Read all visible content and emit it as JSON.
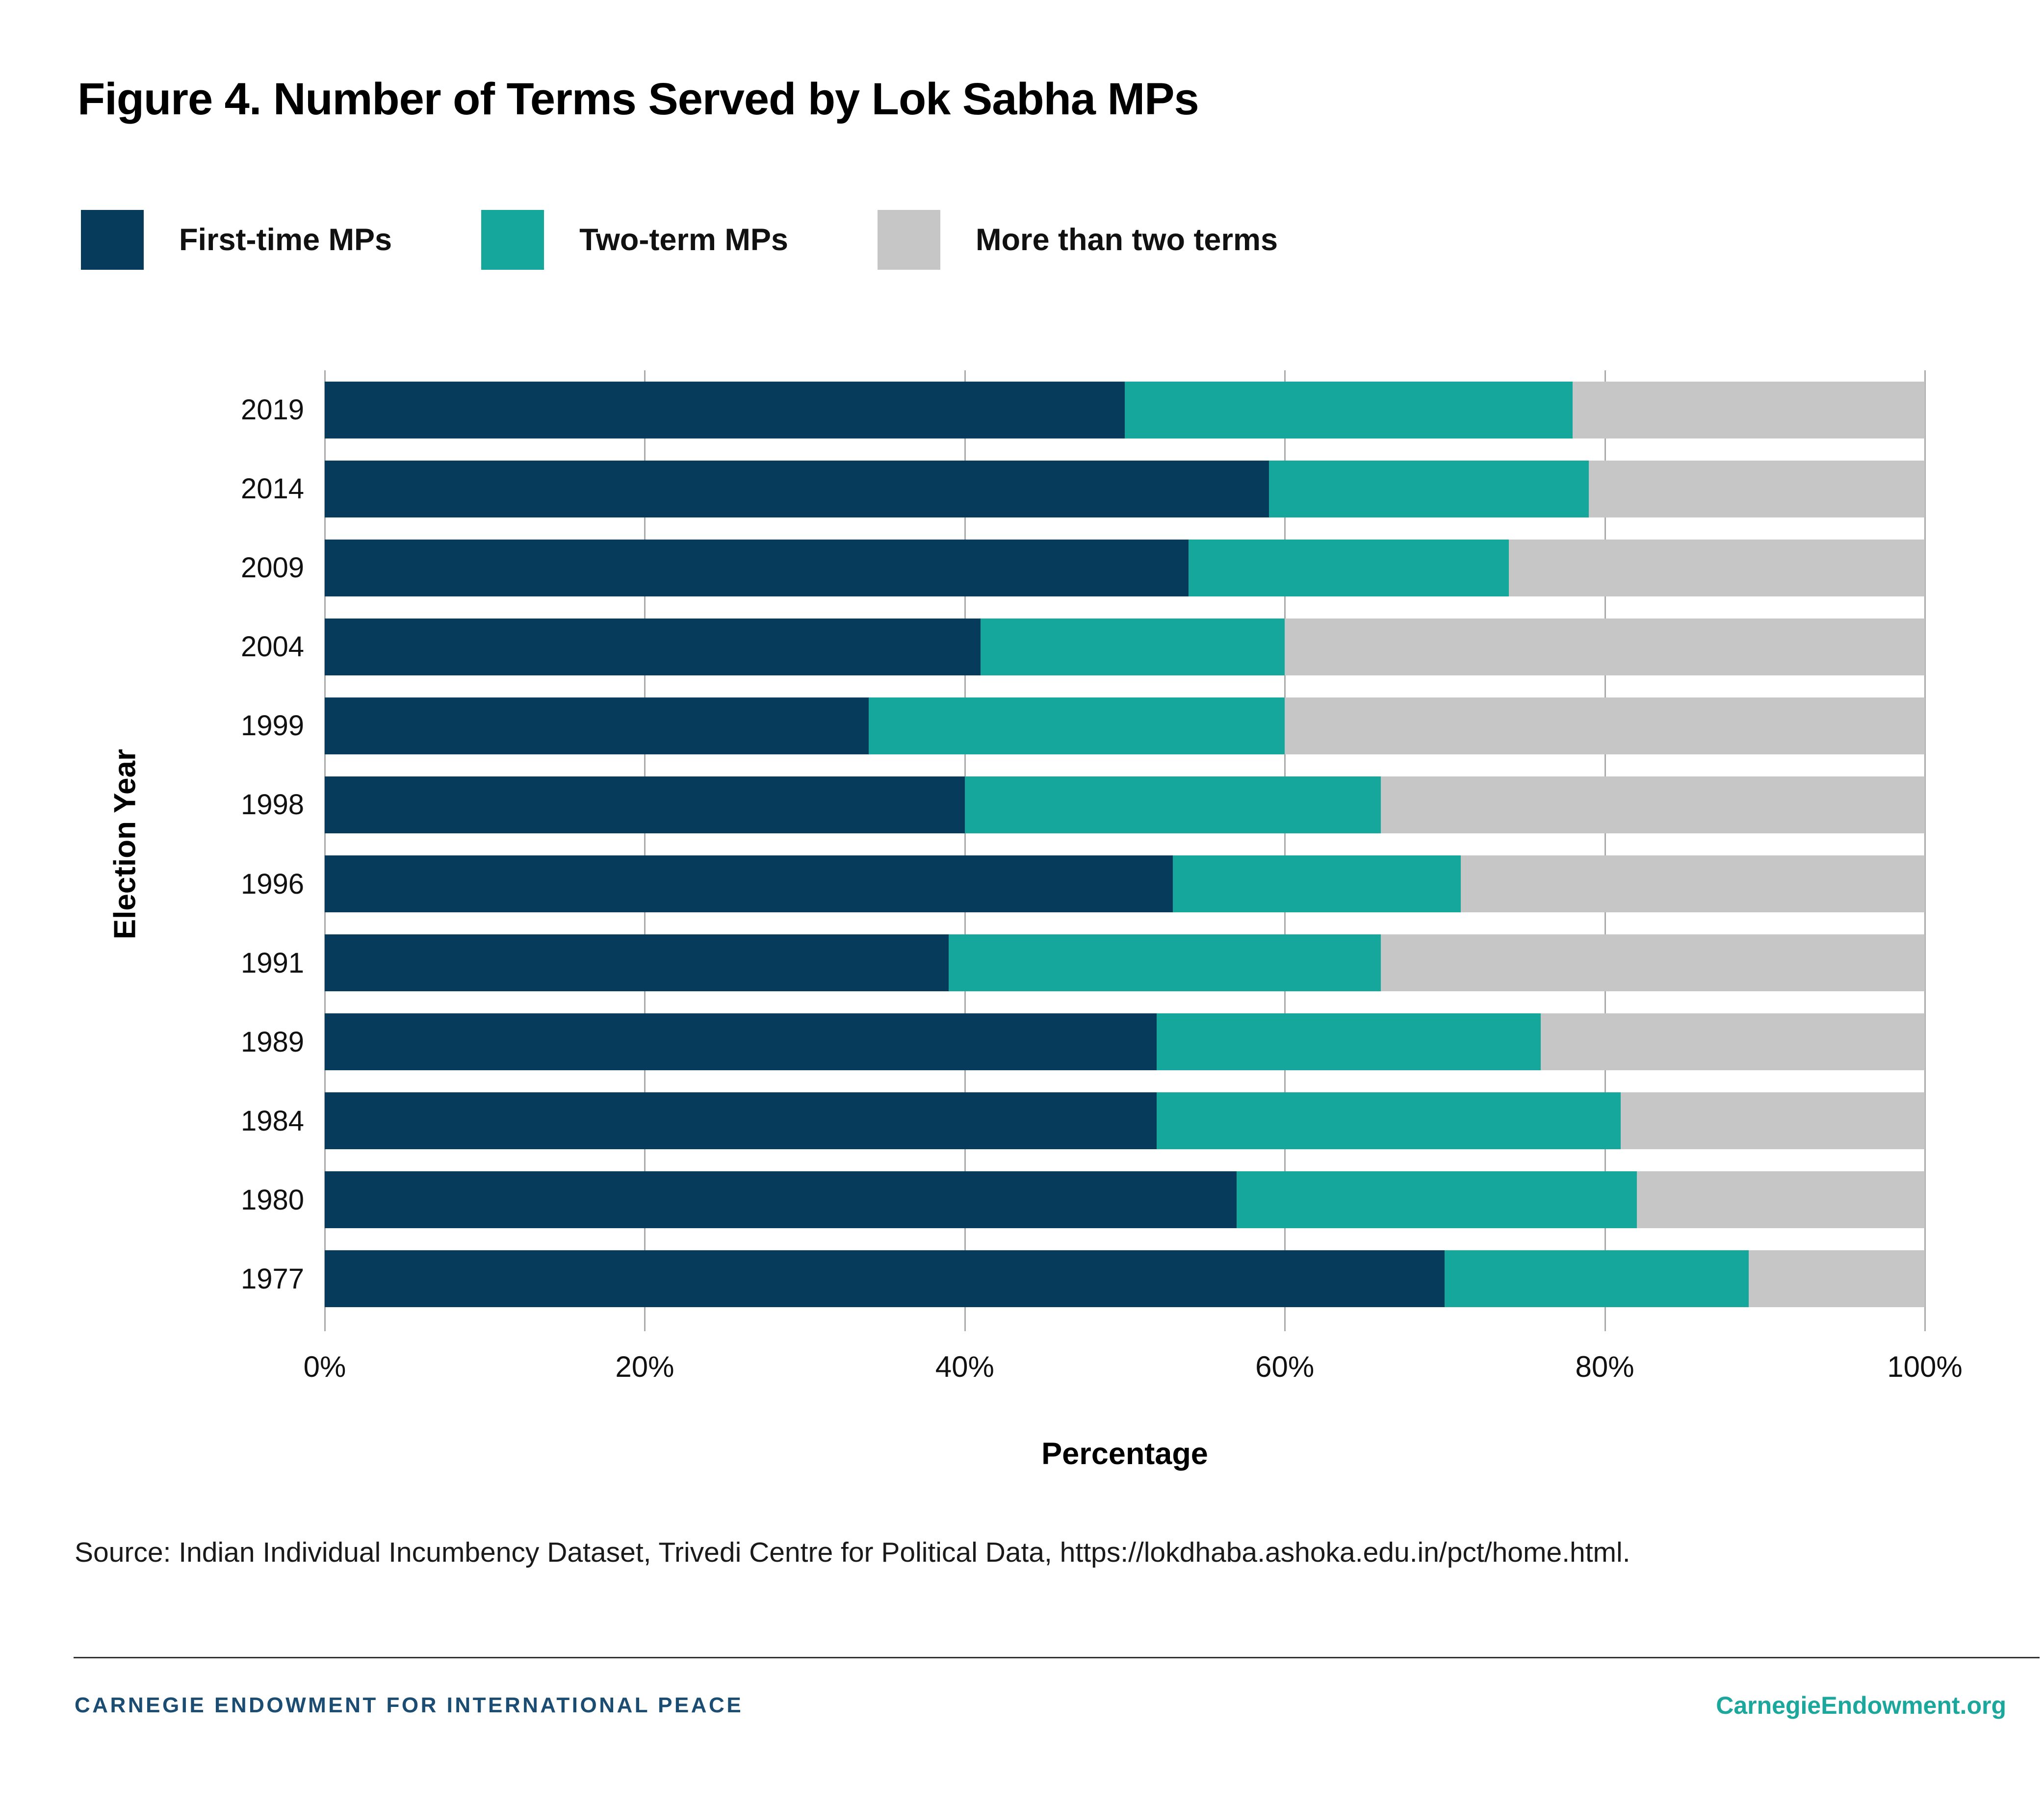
{
  "title": "Figure 4. Number of Terms Served by Lok Sabha MPs",
  "colors": {
    "first_time": "#073B5C",
    "two_term": "#15A79C",
    "more_than_two": "#C6C6C6",
    "gridline": "#ABABAB",
    "footer_navy": "#1B4C72",
    "footer_teal": "#1CA79C",
    "rule": "#333333"
  },
  "chart_data": {
    "type": "bar",
    "orientation": "horizontal",
    "stacked": true,
    "title": "Figure 4. Number of Terms Served by Lok Sabha MPs",
    "categories": [
      "2019",
      "2014",
      "2009",
      "2004",
      "1999",
      "1998",
      "1996",
      "1991",
      "1989",
      "1984",
      "1980",
      "1977"
    ],
    "series": [
      {
        "name": "First-time MPs",
        "color": "#073B5C",
        "values": [
          50,
          59,
          54,
          41,
          34,
          40,
          53,
          39,
          52,
          52,
          57,
          70
        ]
      },
      {
        "name": "Two-term MPs",
        "color": "#15A79C",
        "values": [
          28,
          20,
          20,
          19,
          26,
          26,
          18,
          27,
          24,
          29,
          25,
          19
        ]
      },
      {
        "name": "More than two terms",
        "color": "#C6C6C6",
        "values": [
          22,
          21,
          26,
          40,
          40,
          34,
          29,
          34,
          24,
          19,
          18,
          11
        ]
      }
    ],
    "xlabel": "Percentage",
    "ylabel": "Election Year",
    "xlim": [
      0,
      100
    ],
    "x_ticks": [
      "0%",
      "20%",
      "40%",
      "60%",
      "80%",
      "100%"
    ],
    "x_tick_values": [
      0,
      20,
      40,
      60,
      80,
      100
    ],
    "grid": "vertical",
    "legend_position": "top-left"
  },
  "source": "Source: Indian Individual Incumbency Dataset, Trivedi Centre for Political Data, https://lokdhaba.ashoka.edu.in/pct/home.html.",
  "footer": {
    "left": "CARNEGIE ENDOWMENT FOR INTERNATIONAL PEACE",
    "right": "CarnegieEndowment.org"
  }
}
